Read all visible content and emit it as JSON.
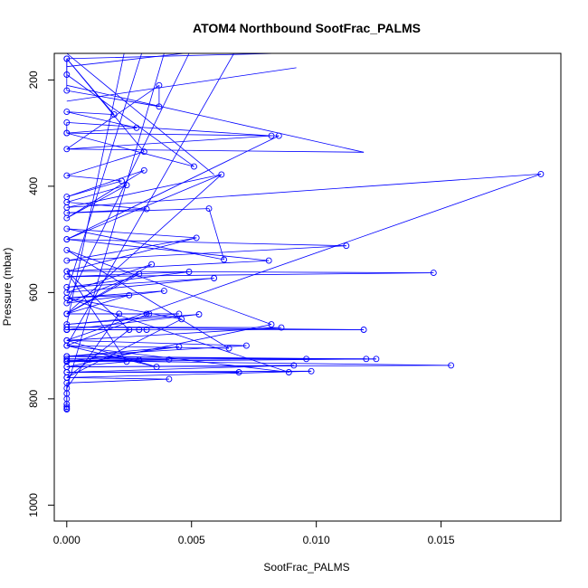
{
  "chart_data": {
    "type": "scatter",
    "title": "ATOM4 Northbound SootFrac_PALMS",
    "xlabel": "SootFrac_PALMS",
    "ylabel": "Pressure (mbar)",
    "xlim": [
      -0.0005,
      0.0198
    ],
    "ylim": [
      1030,
      150
    ],
    "y_reversed": true,
    "x_ticks": [
      0.0,
      0.005,
      0.01,
      0.015
    ],
    "x_tick_labels": [
      "0.000",
      "0.005",
      "0.010",
      "0.015"
    ],
    "y_ticks": [
      200,
      400,
      600,
      800,
      1000
    ],
    "y_tick_labels": [
      "200",
      "400",
      "600",
      "800",
      "1000"
    ],
    "grid": false,
    "legend": "none",
    "colors": {
      "series": "#0000ff",
      "axes": "#000000"
    },
    "series": [
      {
        "style": "line+open-circle",
        "points": [
          [
            0.0,
            810
          ],
          [
            0.0,
            780
          ],
          [
            0.0021,
            640
          ],
          [
            0.0033,
            640
          ],
          [
            0.0,
            700
          ],
          [
            0.0089,
            750
          ],
          [
            0.0,
            610
          ],
          [
            0.0046,
            650
          ],
          [
            0.0,
            760
          ],
          [
            0.0025,
            670
          ],
          [
            0.0,
            560
          ],
          [
            0.0024,
            730
          ],
          [
            0.0,
            740
          ],
          [
            0.0082,
            660
          ],
          [
            0.0,
            520
          ],
          [
            0.0065,
            705
          ],
          [
            0.0,
            700
          ],
          [
            0.0036,
            740
          ],
          [
            0.0,
            690
          ],
          [
            0.019,
            377
          ],
          [
            0.0,
            440
          ],
          [
            0.0062,
            378
          ],
          [
            0.0,
            500
          ],
          [
            0.0085,
            305
          ],
          [
            0.0,
            300
          ],
          [
            0.0,
            280
          ],
          [
            0.0082,
            305
          ],
          [
            0.0,
            330
          ],
          [
            0.0037,
            210
          ],
          [
            0.0037,
            250
          ],
          [
            0.0,
            220
          ],
          [
            0.0,
            160
          ],
          [
            0.0019,
            265
          ],
          [
            0.0,
            260
          ],
          [
            0.0028,
            290
          ],
          [
            0.0,
            300
          ],
          [
            0.0051,
            363
          ],
          [
            0.0,
            190
          ],
          [
            0.0,
            160
          ],
          [
            0.0031,
            335
          ],
          [
            0.0,
            380
          ],
          [
            0.0022,
            390
          ],
          [
            0.0,
            420
          ],
          [
            0.0031,
            370
          ],
          [
            0.0,
            460
          ],
          [
            0.0024,
            398
          ],
          [
            0.0,
            430
          ],
          [
            0.0032,
            443
          ],
          [
            0.0,
            450
          ],
          [
            0.0057,
            442
          ],
          [
            0.0063,
            538
          ],
          [
            0.0,
            480
          ],
          [
            0.0052,
            497
          ],
          [
            0.0,
            540
          ],
          [
            0.0112,
            512
          ],
          [
            0.0,
            500
          ],
          [
            0.0081,
            540
          ],
          [
            0.0,
            560
          ],
          [
            0.0147,
            563
          ],
          [
            0.0,
            570
          ],
          [
            0.0049,
            561
          ],
          [
            0.0,
            590
          ],
          [
            0.0059,
            573
          ],
          [
            0.0,
            600
          ],
          [
            0.0034,
            547
          ],
          [
            0.0,
            640
          ],
          [
            0.0029,
            565
          ],
          [
            0.0,
            620
          ],
          [
            0.0039,
            597
          ],
          [
            0.0,
            610
          ],
          [
            0.0025,
            605
          ],
          [
            0.0,
            640
          ],
          [
            0.0032,
            640
          ],
          [
            0.0,
            640
          ],
          [
            0.0045,
            640
          ],
          [
            0.0,
            660
          ],
          [
            0.0053,
            641
          ],
          [
            0.0,
            670
          ],
          [
            0.0029,
            670
          ],
          [
            0.0,
            670
          ],
          [
            0.0032,
            670
          ],
          [
            0.0,
            670
          ],
          [
            0.0119,
            670
          ],
          [
            0.0,
            665
          ],
          [
            0.0086,
            666
          ],
          [
            0.0,
            690
          ],
          [
            0.0072,
            700
          ],
          [
            0.0,
            720
          ],
          [
            0.0045,
            702
          ],
          [
            0.0,
            730
          ],
          [
            0.0124,
            725
          ],
          [
            0.0,
            725
          ],
          [
            0.012,
            725
          ],
          [
            0.0,
            720
          ],
          [
            0.0096,
            725
          ],
          [
            0.0,
            720
          ],
          [
            0.0041,
            726
          ],
          [
            0.0,
            730
          ],
          [
            0.0029,
            727
          ],
          [
            0.0,
            728
          ],
          [
            0.0154,
            737
          ],
          [
            0.0,
            740
          ],
          [
            0.0091,
            737
          ],
          [
            0.0,
            750
          ],
          [
            0.0069,
            750
          ],
          [
            0.0,
            750
          ],
          [
            0.0098,
            748
          ],
          [
            0.0,
            760
          ],
          [
            0.0041,
            763
          ],
          [
            0.0,
            770
          ],
          [
            0.0,
            790
          ],
          [
            0.0,
            800
          ],
          [
            0.0,
            815
          ],
          [
            0.0,
            818
          ],
          [
            0.0,
            820
          ]
        ],
        "extra_segments": [
          [
            [
              0.0,
              210
            ],
            [
              0.0119,
              336
            ]
          ],
          [
            [
              0.0,
              240
            ],
            [
              0.0092,
              177
            ]
          ],
          [
            [
              0.0,
              160
            ],
            [
              0.0084,
              150
            ]
          ],
          [
            [
              0.0,
              330
            ],
            [
              0.0119,
              336
            ]
          ],
          [
            [
              0.0,
              150
            ],
            [
              0.0059,
              378
            ]
          ],
          [
            [
              0.0,
              175
            ],
            [
              0.0047,
              150
            ]
          ],
          [
            [
              0.0,
              600
            ],
            [
              0.003,
              150
            ]
          ],
          [
            [
              0.0,
              560
            ],
            [
              0.0052,
              497
            ]
          ],
          [
            [
              0.0,
              640
            ],
            [
              0.0062,
              378
            ]
          ],
          [
            [
              0.0,
              700
            ],
            [
              0.0067,
              150
            ]
          ],
          [
            [
              0.0,
              660
            ],
            [
              0.0023,
              150
            ]
          ],
          [
            [
              0.0,
              620
            ],
            [
              0.0049,
              150
            ]
          ],
          [
            [
              0.0,
              780
            ],
            [
              0.0039,
              150
            ]
          ]
        ]
      }
    ]
  }
}
